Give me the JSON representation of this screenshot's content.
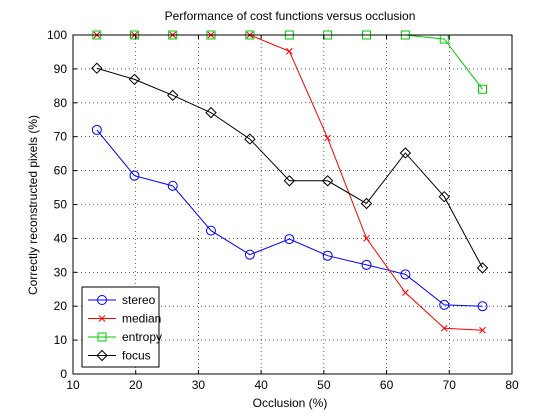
{
  "chart_data": {
    "type": "line",
    "title": "Performance of cost functions versus occlusion",
    "xlabel": "Occlusion (%)",
    "ylabel": "Correctly reconstructed pixels (%)",
    "xlim": [
      10,
      80
    ],
    "ylim": [
      0,
      100
    ],
    "xticks": [
      10,
      20,
      30,
      40,
      50,
      60,
      70,
      80
    ],
    "yticks": [
      0,
      10,
      20,
      30,
      40,
      50,
      60,
      70,
      80,
      90,
      100
    ],
    "grid": true,
    "legend_position": "bottom-left",
    "x": [
      13.8,
      19.8,
      25.9,
      32.0,
      38.2,
      44.5,
      50.6,
      56.8,
      63.0,
      69.2,
      75.3
    ],
    "series": [
      {
        "name": "stereo",
        "color": "#0000ff",
        "marker": "circle",
        "values": [
          72,
          58.5,
          55.5,
          42.3,
          35.2,
          39.8,
          34.9,
          32.2,
          29.4,
          20.4,
          20.0
        ]
      },
      {
        "name": "median",
        "color": "#ff0000",
        "marker": "x",
        "values": [
          100,
          100,
          100,
          100,
          100,
          95.2,
          69.6,
          40.0,
          24.0,
          13.5,
          12.9
        ]
      },
      {
        "name": "entropy",
        "color": "#00cc00",
        "marker": "square",
        "values": [
          100,
          100,
          100,
          100,
          100,
          100,
          100,
          100,
          100,
          98.8,
          84.0
        ]
      },
      {
        "name": "focus",
        "color": "#000000",
        "marker": "diamond",
        "values": [
          90.2,
          86.9,
          82.2,
          77.1,
          69.3,
          57.0,
          57.0,
          50.3,
          65.2,
          52.3,
          31.3
        ]
      }
    ]
  }
}
